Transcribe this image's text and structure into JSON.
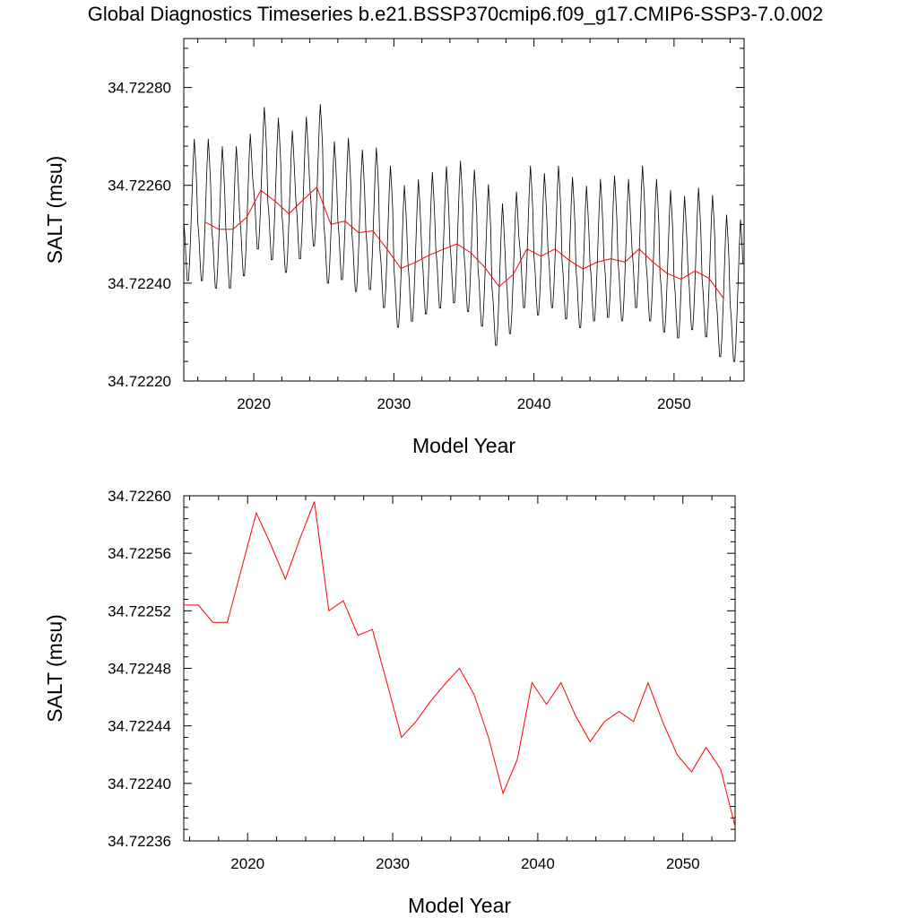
{
  "page_title": "Global Diagnostics Timeseries b.e21.BSSP370cmip6.f09_g17.CMIP6-SSP3-7.0.002",
  "colors": {
    "monthly": "#000000",
    "annual": "#ff0000",
    "frame": "#000000"
  },
  "chart_data": [
    {
      "type": "line",
      "xlabel": "Model Year",
      "ylabel": "SALT (msu)",
      "xlim": [
        2015,
        2055
      ],
      "ylim": [
        34.7222,
        34.7229
      ],
      "xticks": [
        "2020",
        "2030",
        "2040",
        "2050"
      ],
      "yticks": [
        "34.72220",
        "34.72240",
        "34.72260",
        "34.72280"
      ],
      "series": [
        {
          "style": "monthly",
          "color": "#000000",
          "start_year": 2015.0,
          "step_years": 0.0833333,
          "monthly_mean": [
            0.0,
            -3e-05,
            -8e-05,
            -0.00012,
            -0.00012,
            -8e-05,
            -2e-05,
            5e-05,
            0.00012,
            0.00017,
            0.00013,
            8e-05
          ],
          "annual_centers": [
            34.722525,
            34.722525,
            34.72251,
            34.72251,
            34.722535,
            34.72259,
            34.722568,
            34.722542,
            34.72257,
            34.722596,
            34.72252,
            34.722527,
            34.722503,
            34.722507,
            34.72247,
            34.72243,
            34.722442,
            34.722457,
            34.722469,
            34.72248,
            34.722462,
            34.722432,
            34.722393,
            34.722417,
            34.72247,
            34.722455,
            34.72247,
            34.722447,
            34.722429,
            34.722443,
            34.72245,
            34.722443,
            34.72247,
            34.722443,
            34.72242,
            34.722408,
            34.722425,
            34.72241,
            34.72237,
            34.72236
          ]
        },
        {
          "style": "annual",
          "name": "",
          "color": "#ff0000",
          "x": [
            2016.5,
            2017.5,
            2018.5,
            2019.5,
            2020.5,
            2021.5,
            2022.5,
            2023.5,
            2024.5,
            2025.5,
            2026.5,
            2027.5,
            2028.5,
            2029.5,
            2030.5,
            2031.5,
            2032.5,
            2033.5,
            2034.5,
            2035.5,
            2036.5,
            2037.5,
            2038.5,
            2039.5,
            2040.5,
            2041.5,
            2042.5,
            2043.5,
            2044.5,
            2045.5,
            2046.5,
            2047.5,
            2048.5,
            2049.5,
            2050.5,
            2051.5,
            2052.5,
            2053.5
          ],
          "y": [
            34.722525,
            34.72251,
            34.72251,
            34.722535,
            34.72259,
            34.722568,
            34.722542,
            34.72257,
            34.722596,
            34.72252,
            34.722527,
            34.722503,
            34.722507,
            34.72247,
            34.72243,
            34.722442,
            34.722457,
            34.722469,
            34.72248,
            34.722462,
            34.722432,
            34.722393,
            34.722417,
            34.72247,
            34.722455,
            34.72247,
            34.722447,
            34.722429,
            34.722443,
            34.72245,
            34.722443,
            34.72247,
            34.722443,
            34.72242,
            34.722408,
            34.722425,
            34.72241,
            34.72237
          ]
        }
      ]
    },
    {
      "type": "line",
      "xlabel": "Model Year",
      "ylabel": "SALT (msu)",
      "xlim": [
        2015.6,
        2053.6
      ],
      "ylim": [
        34.72236,
        34.7226
      ],
      "xticks": [
        "2020",
        "2030",
        "2040",
        "2050"
      ],
      "yticks": [
        "34.72236",
        "34.72240",
        "34.72244",
        "34.72248",
        "34.72252",
        "34.72256",
        "34.72260"
      ],
      "series": [
        {
          "style": "annual",
          "name": "",
          "color": "#ff0000",
          "x": [
            2015.6,
            2016.6,
            2017.6,
            2018.6,
            2019.6,
            2020.6,
            2021.6,
            2022.6,
            2023.6,
            2024.6,
            2025.6,
            2026.6,
            2027.6,
            2028.6,
            2029.6,
            2030.6,
            2031.6,
            2032.6,
            2033.6,
            2034.6,
            2035.6,
            2036.6,
            2037.6,
            2038.6,
            2039.6,
            2040.6,
            2041.6,
            2042.6,
            2043.6,
            2044.6,
            2045.6,
            2046.6,
            2047.6,
            2048.6,
            2049.6,
            2050.6,
            2051.6,
            2052.6,
            2053.6
          ],
          "y": [
            34.722524,
            34.722524,
            34.722512,
            34.722512,
            34.72255,
            34.722588,
            34.722566,
            34.722542,
            34.72257,
            34.722596,
            34.72252,
            34.722527,
            34.722503,
            34.722507,
            34.72247,
            34.722432,
            34.722443,
            34.722457,
            34.722469,
            34.72248,
            34.722462,
            34.722432,
            34.722393,
            34.722417,
            34.72247,
            34.722455,
            34.72247,
            34.722447,
            34.722429,
            34.722443,
            34.72245,
            34.722443,
            34.72247,
            34.722443,
            34.72242,
            34.722408,
            34.722425,
            34.72241,
            34.72237
          ]
        }
      ]
    }
  ]
}
